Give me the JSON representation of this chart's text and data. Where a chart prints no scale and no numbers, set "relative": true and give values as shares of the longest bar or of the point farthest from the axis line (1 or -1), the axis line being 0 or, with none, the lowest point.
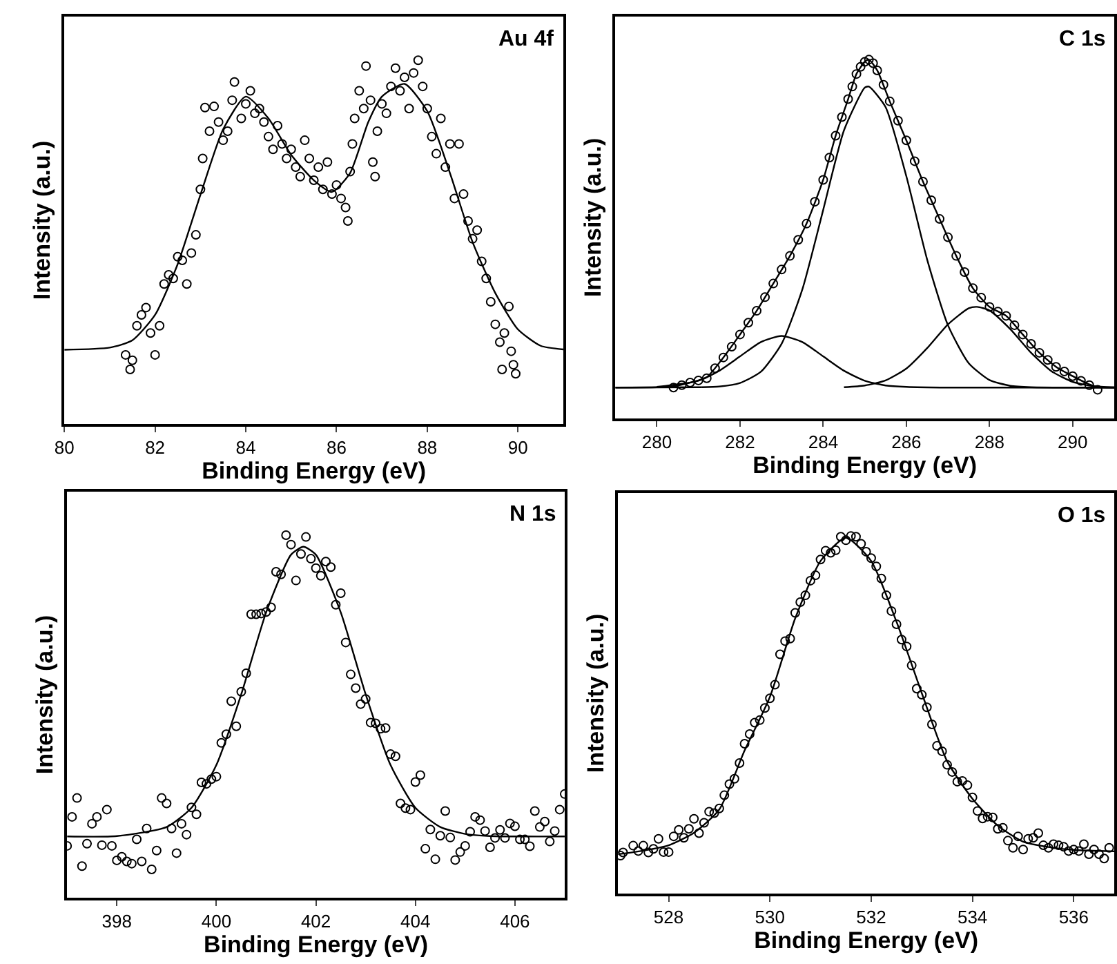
{
  "chart_data": [
    {
      "type": "scatter",
      "title": "Au 4f",
      "xlabel": "Binding Energy (eV)",
      "ylabel": "Intensity (a.u.)",
      "relative": true,
      "xlim": [
        80,
        91
      ],
      "xticks": [
        80,
        82,
        84,
        86,
        88,
        90
      ],
      "series": [
        {
          "color": "#000000",
          "marker": "circle",
          "x": [
            81.35,
            81.45,
            81.5,
            81.6,
            81.7,
            81.8,
            81.9,
            82.0,
            82.1,
            82.2,
            82.3,
            82.4,
            82.5,
            82.6,
            82.7,
            82.8,
            82.9,
            83.0,
            83.05,
            83.1,
            83.2,
            83.3,
            83.4,
            83.5,
            83.6,
            83.7,
            83.75,
            83.9,
            84.0,
            84.1,
            84.2,
            84.3,
            84.4,
            84.5,
            84.6,
            84.7,
            84.8,
            84.9,
            85.0,
            85.1,
            85.2,
            85.3,
            85.4,
            85.5,
            85.6,
            85.7,
            85.8,
            85.9,
            86.0,
            86.1,
            86.2,
            86.25,
            86.3,
            86.35,
            86.4,
            86.5,
            86.6,
            86.65,
            86.75,
            86.8,
            86.85,
            86.9,
            87.0,
            87.1,
            87.2,
            87.3,
            87.4,
            87.5,
            87.6,
            87.7,
            87.8,
            87.9,
            88.0,
            88.1,
            88.2,
            88.3,
            88.4,
            88.5,
            88.6,
            88.7,
            88.8,
            88.9,
            89.0,
            89.1,
            89.2,
            89.3,
            89.4,
            89.5,
            89.6,
            89.65,
            89.7,
            89.8,
            89.85,
            89.9,
            89.95
          ],
          "values": [
            0.19,
            0.15,
            0.175,
            0.27,
            0.3,
            0.32,
            0.25,
            0.19,
            0.27,
            0.385,
            0.41,
            0.4,
            0.46,
            0.45,
            0.385,
            0.47,
            0.52,
            0.645,
            0.73,
            0.87,
            0.805,
            0.873,
            0.83,
            0.78,
            0.805,
            0.89,
            0.94,
            0.84,
            0.88,
            0.916,
            0.854,
            0.867,
            0.83,
            0.79,
            0.755,
            0.82,
            0.77,
            0.73,
            0.755,
            0.706,
            0.68,
            0.78,
            0.73,
            0.67,
            0.706,
            0.645,
            0.72,
            0.632,
            0.657,
            0.62,
            0.595,
            0.558,
            0.694,
            0.77,
            0.84,
            0.916,
            0.867,
            0.984,
            0.89,
            0.72,
            0.68,
            0.805,
            0.88,
            0.854,
            0.928,
            0.978,
            0.916,
            0.953,
            0.867,
            0.965,
            1.0,
            0.928,
            0.867,
            0.79,
            0.743,
            0.84,
            0.706,
            0.77,
            0.62,
            0.77,
            0.632,
            0.558,
            0.509,
            0.533,
            0.447,
            0.4,
            0.336,
            0.274,
            0.225,
            0.15,
            0.25,
            0.323,
            0.2,
            0.163,
            0.138
          ]
        },
        {
          "type": "line",
          "color": "#000000",
          "marker": "none",
          "x": [
            80,
            81,
            81.5,
            82,
            82.5,
            83,
            83.5,
            84,
            84.5,
            85,
            85.5,
            85.9,
            86.3,
            86.7,
            87,
            87.5,
            88,
            88.5,
            89,
            89.5,
            90,
            90.5,
            91
          ],
          "values": [
            0.204,
            0.21,
            0.23,
            0.3,
            0.44,
            0.63,
            0.81,
            0.9,
            0.84,
            0.74,
            0.67,
            0.638,
            0.69,
            0.83,
            0.9,
            0.935,
            0.86,
            0.69,
            0.5,
            0.36,
            0.26,
            0.215,
            0.205
          ]
        }
      ]
    },
    {
      "type": "scatter",
      "title": "C 1s",
      "xlabel": "Binding Energy (eV)",
      "ylabel": "Intensity (a.u.)",
      "relative": true,
      "xlim": [
        279,
        291
      ],
      "xticks": [
        280,
        282,
        284,
        286,
        288,
        290
      ],
      "series": [
        {
          "color": "#000000",
          "marker": "circle",
          "x": [
            280.4,
            280.6,
            280.8,
            281.0,
            281.2,
            281.4,
            281.6,
            281.8,
            282.0,
            282.2,
            282.4,
            282.6,
            282.8,
            283.0,
            283.2,
            283.4,
            283.6,
            283.8,
            284.0,
            284.15,
            284.3,
            284.45,
            284.6,
            284.7,
            284.8,
            284.9,
            285.0,
            285.1,
            285.2,
            285.3,
            285.45,
            285.6,
            285.8,
            286.0,
            286.2,
            286.4,
            286.6,
            286.8,
            287.0,
            287.2,
            287.4,
            287.6,
            287.8,
            288.0,
            288.2,
            288.4,
            288.6,
            288.8,
            289.0,
            289.2,
            289.4,
            289.6,
            289.8,
            290.0,
            290.2,
            290.4,
            290.6
          ],
          "values": [
            0.086,
            0.093,
            0.1,
            0.106,
            0.112,
            0.14,
            0.17,
            0.2,
            0.234,
            0.267,
            0.3,
            0.338,
            0.376,
            0.415,
            0.453,
            0.498,
            0.543,
            0.604,
            0.665,
            0.727,
            0.788,
            0.84,
            0.89,
            0.925,
            0.96,
            0.98,
            0.994,
            1.0,
            0.99,
            0.97,
            0.93,
            0.884,
            0.83,
            0.775,
            0.717,
            0.66,
            0.608,
            0.556,
            0.505,
            0.453,
            0.408,
            0.363,
            0.337,
            0.311,
            0.298,
            0.286,
            0.26,
            0.234,
            0.208,
            0.183,
            0.163,
            0.144,
            0.131,
            0.118,
            0.105,
            0.093,
            0.08
          ]
        },
        {
          "type": "line",
          "color": "#000000",
          "marker": "none",
          "x": [
            279,
            280,
            280.4,
            280.8,
            281.2,
            281.6,
            282.0,
            282.4,
            282.8,
            283.2,
            283.6,
            284.0,
            284.3,
            284.6,
            284.8,
            285.0,
            285.1,
            285.3,
            285.6,
            286.0,
            286.4,
            286.8,
            287.2,
            287.6,
            288.0,
            288.4,
            288.8,
            289.2,
            289.6,
            290.0,
            290.4,
            290.6,
            291
          ],
          "values": [
            0.086,
            0.087,
            0.09,
            0.1,
            0.115,
            0.17,
            0.234,
            0.3,
            0.376,
            0.453,
            0.543,
            0.665,
            0.788,
            0.89,
            0.96,
            0.994,
            1.0,
            0.97,
            0.884,
            0.775,
            0.66,
            0.556,
            0.453,
            0.363,
            0.311,
            0.286,
            0.234,
            0.183,
            0.144,
            0.118,
            0.095,
            0.088,
            0.086
          ]
        },
        {
          "type": "line",
          "color": "#000000",
          "marker": "none",
          "x": [
            280,
            281,
            281.5,
            282,
            282.5,
            283,
            283.5,
            284,
            284.5,
            285,
            285.5,
            286,
            287,
            291
          ],
          "values": [
            0.088,
            0.105,
            0.133,
            0.173,
            0.213,
            0.23,
            0.213,
            0.173,
            0.133,
            0.105,
            0.092,
            0.088,
            0.086,
            0.086
          ]
        },
        {
          "type": "line",
          "color": "#000000",
          "marker": "none",
          "x": [
            279,
            281,
            281.5,
            282,
            282.5,
            283,
            283.5,
            284,
            284.5,
            285,
            285.1,
            285.5,
            286,
            286.5,
            287,
            287.5,
            288,
            288.5,
            289,
            291
          ],
          "values": [
            0.086,
            0.087,
            0.089,
            0.099,
            0.13,
            0.208,
            0.36,
            0.581,
            0.803,
            0.922,
            0.925,
            0.868,
            0.675,
            0.443,
            0.26,
            0.154,
            0.107,
            0.091,
            0.087,
            0.086
          ]
        },
        {
          "type": "line",
          "color": "#000000",
          "marker": "none",
          "x": [
            284.5,
            285,
            285.5,
            286,
            286.5,
            287,
            287.5,
            287.7,
            288,
            288.5,
            289,
            289.5,
            290,
            290.5,
            291
          ],
          "values": [
            0.087,
            0.092,
            0.106,
            0.139,
            0.196,
            0.262,
            0.307,
            0.311,
            0.301,
            0.249,
            0.183,
            0.131,
            0.102,
            0.09,
            0.087
          ]
        }
      ]
    },
    {
      "type": "scatter",
      "title": "N 1s",
      "xlabel": "Binding Energy (eV)",
      "ylabel": "Intensity (a.u.)",
      "relative": true,
      "xlim": [
        397,
        407
      ],
      "xticks": [
        398,
        400,
        402,
        404,
        406
      ],
      "series": [
        {
          "color": "#000000",
          "marker": "circle",
          "x": [
            397.0,
            397.1,
            397.2,
            397.3,
            397.4,
            397.5,
            397.6,
            397.7,
            397.8,
            397.9,
            398.0,
            398.1,
            398.2,
            398.3,
            398.4,
            398.5,
            398.6,
            398.7,
            398.8,
            398.9,
            399.0,
            399.1,
            399.2,
            399.3,
            399.4,
            399.5,
            399.6,
            399.7,
            399.8,
            399.9,
            400.0,
            400.1,
            400.2,
            400.3,
            400.4,
            400.5,
            400.6,
            400.7,
            400.8,
            400.9,
            401.0,
            401.1,
            401.2,
            401.3,
            401.4,
            401.5,
            401.6,
            401.7,
            401.8,
            401.9,
            402.0,
            402.1,
            402.2,
            402.3,
            402.4,
            402.5,
            402.6,
            402.7,
            402.8,
            402.9,
            403.0,
            403.1,
            403.2,
            403.3,
            403.4,
            403.5,
            403.6,
            403.7,
            403.8,
            403.9,
            404.0,
            404.1,
            404.2,
            404.3,
            404.4,
            404.5,
            404.6,
            404.7,
            404.8,
            404.9,
            405.0,
            405.1,
            405.2,
            405.3,
            405.4,
            405.5,
            405.6,
            405.7,
            405.8,
            405.9,
            406.0,
            406.1,
            406.2,
            406.3,
            406.4,
            406.5,
            406.6,
            406.7,
            406.8,
            406.9,
            407.0
          ],
          "values": [
            0.143,
            0.223,
            0.275,
            0.087,
            0.149,
            0.204,
            0.223,
            0.145,
            0.243,
            0.143,
            0.103,
            0.113,
            0.1,
            0.094,
            0.161,
            0.1,
            0.191,
            0.078,
            0.13,
            0.275,
            0.26,
            0.191,
            0.123,
            0.204,
            0.174,
            0.249,
            0.23,
            0.318,
            0.314,
            0.327,
            0.334,
            0.427,
            0.451,
            0.542,
            0.473,
            0.568,
            0.619,
            0.782,
            0.782,
            0.784,
            0.788,
            0.801,
            0.899,
            0.892,
            1.0,
            0.974,
            0.875,
            0.948,
            0.995,
            0.935,
            0.909,
            0.888,
            0.927,
            0.912,
            0.808,
            0.84,
            0.704,
            0.616,
            0.578,
            0.534,
            0.548,
            0.483,
            0.481,
            0.466,
            0.468,
            0.396,
            0.39,
            0.26,
            0.247,
            0.243,
            0.319,
            0.338,
            0.135,
            0.188,
            0.106,
            0.171,
            0.239,
            0.166,
            0.104,
            0.126,
            0.143,
            0.182,
            0.223,
            0.214,
            0.184,
            0.139,
            0.165,
            0.187,
            0.165,
            0.205,
            0.197,
            0.161,
            0.161,
            0.142,
            0.239,
            0.195,
            0.21,
            0.155,
            0.184,
            0.243,
            0.286
          ]
        },
        {
          "type": "line",
          "color": "#000000",
          "marker": "none",
          "x": [
            397,
            398,
            399,
            399.5,
            400,
            400.5,
            401,
            401.5,
            401.75,
            402,
            402.5,
            403,
            403.5,
            404,
            404.5,
            405,
            405.5,
            407
          ],
          "values": [
            0.169,
            0.17,
            0.195,
            0.248,
            0.366,
            0.561,
            0.787,
            0.946,
            0.968,
            0.946,
            0.787,
            0.561,
            0.366,
            0.248,
            0.195,
            0.176,
            0.17,
            0.169
          ]
        }
      ]
    },
    {
      "type": "scatter",
      "title": "O 1s",
      "xlabel": "Binding Energy (eV)",
      "ylabel": "Intensity (a.u.)",
      "relative": true,
      "xlim": [
        527,
        536.8
      ],
      "xticks": [
        528,
        530,
        532,
        534,
        536
      ],
      "series": [
        {
          "color": "#000000",
          "marker": "circle",
          "x": [
            527.05,
            527.1,
            527.3,
            527.4,
            527.5,
            527.6,
            527.7,
            527.8,
            527.9,
            528.0,
            528.1,
            528.2,
            528.3,
            528.4,
            528.5,
            528.6,
            528.7,
            528.8,
            528.9,
            529.0,
            529.1,
            529.2,
            529.3,
            529.4,
            529.5,
            529.6,
            529.7,
            529.8,
            529.9,
            530.0,
            530.1,
            530.2,
            530.3,
            530.4,
            530.5,
            530.6,
            530.7,
            530.8,
            530.9,
            531.0,
            531.1,
            531.2,
            531.3,
            531.4,
            531.5,
            531.6,
            531.7,
            531.8,
            531.9,
            532.0,
            532.1,
            532.2,
            532.3,
            532.4,
            532.5,
            532.6,
            532.7,
            532.8,
            532.9,
            533.0,
            533.1,
            533.2,
            533.3,
            533.4,
            533.5,
            533.6,
            533.7,
            533.8,
            533.9,
            534.0,
            534.1,
            534.2,
            534.3,
            534.4,
            534.5,
            534.6,
            534.7,
            534.8,
            534.9,
            535.0,
            535.1,
            535.2,
            535.3,
            535.4,
            535.5,
            535.6,
            535.7,
            535.8,
            535.9,
            536.0,
            536.1,
            536.2,
            536.3,
            536.4,
            536.5,
            536.6,
            536.7
          ],
          "values": [
            0.106,
            0.115,
            0.134,
            0.119,
            0.134,
            0.115,
            0.125,
            0.153,
            0.116,
            0.116,
            0.16,
            0.178,
            0.156,
            0.181,
            0.209,
            0.169,
            0.198,
            0.229,
            0.225,
            0.238,
            0.275,
            0.306,
            0.321,
            0.365,
            0.419,
            0.446,
            0.478,
            0.485,
            0.519,
            0.546,
            0.584,
            0.669,
            0.706,
            0.713,
            0.785,
            0.815,
            0.834,
            0.875,
            0.89,
            0.934,
            0.959,
            0.953,
            0.96,
            0.998,
            0.988,
            1.0,
            0.998,
            0.978,
            0.956,
            0.938,
            0.915,
            0.881,
            0.834,
            0.79,
            0.753,
            0.71,
            0.691,
            0.638,
            0.573,
            0.556,
            0.521,
            0.473,
            0.413,
            0.398,
            0.36,
            0.34,
            0.313,
            0.315,
            0.303,
            0.269,
            0.231,
            0.21,
            0.215,
            0.213,
            0.181,
            0.184,
            0.148,
            0.128,
            0.16,
            0.123,
            0.153,
            0.156,
            0.169,
            0.135,
            0.128,
            0.138,
            0.135,
            0.131,
            0.119,
            0.123,
            0.119,
            0.138,
            0.11,
            0.123,
            0.11,
            0.098,
            0.128
          ]
        },
        {
          "type": "line",
          "color": "#000000",
          "marker": "none",
          "x": [
            527,
            527.5,
            528,
            528.5,
            529,
            529.5,
            530,
            530.5,
            531,
            531.5,
            532,
            532.5,
            533,
            533.5,
            534,
            534.5,
            535,
            535.5,
            536,
            536.8
          ],
          "values": [
            0.11,
            0.12,
            0.135,
            0.17,
            0.235,
            0.4,
            0.55,
            0.77,
            0.93,
            0.995,
            0.93,
            0.76,
            0.56,
            0.37,
            0.265,
            0.19,
            0.145,
            0.13,
            0.122,
            0.118
          ]
        }
      ]
    }
  ]
}
